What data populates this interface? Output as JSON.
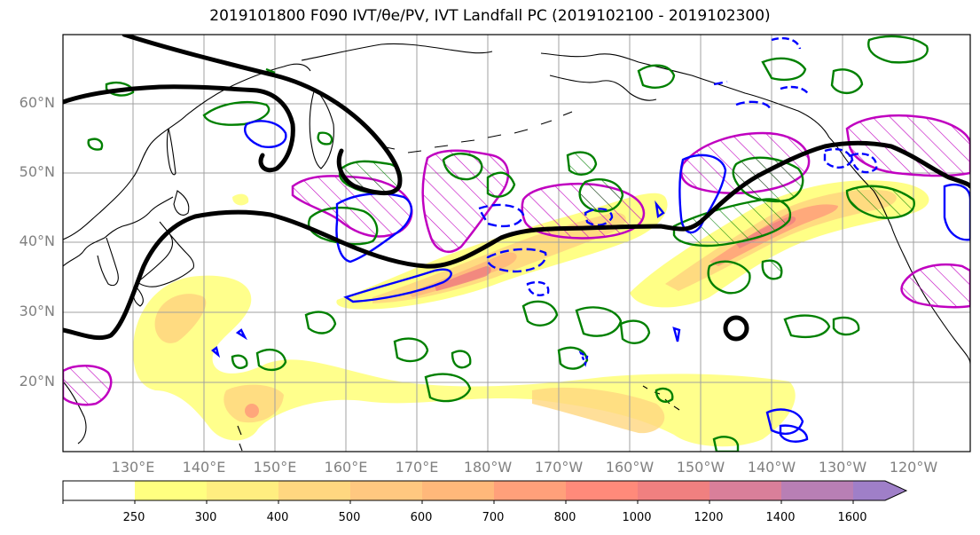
{
  "title": "2019101800 F090 IVT/θe/PV, IVT Landfall PC (2019102100 - 2019102300)",
  "lat_labels": [
    "60°N",
    "50°N",
    "40°N",
    "30°N",
    "20°N"
  ],
  "lon_labels": [
    "130°E",
    "140°E",
    "150°E",
    "160°E",
    "170°E",
    "180°W",
    "170°W",
    "160°W",
    "150°W",
    "140°W",
    "130°W",
    "120°W"
  ],
  "colorbar": {
    "ticks": [
      "250",
      "300",
      "400",
      "500",
      "600",
      "700",
      "800",
      "1000",
      "1200",
      "1400",
      "1600"
    ],
    "colors": [
      "#ffffff",
      "#ffff80",
      "#ffee80",
      "#ffd780",
      "#ffc880",
      "#ffb87a",
      "#ffa07a",
      "#ff8a7a",
      "#f08080",
      "#d97f9a",
      "#b87fb5",
      "#9f7fc8"
    ]
  },
  "colors": {
    "pv_contour": "#000000",
    "theta_e_positive": "#008000",
    "theta_e_negative": "#0000ff",
    "landfall_pc": "#c000c0",
    "coastline": "#000000",
    "grid": "#a0a0a0"
  }
}
